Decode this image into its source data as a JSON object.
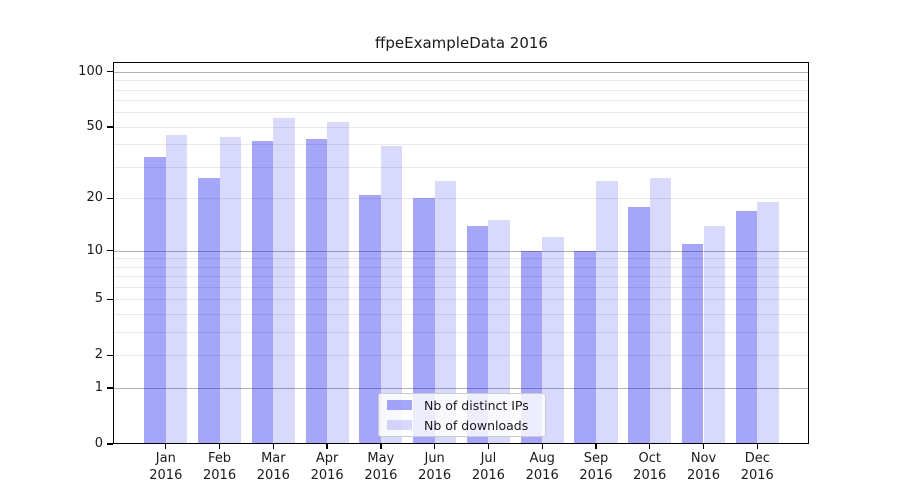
{
  "chart_data": {
    "type": "bar",
    "title": "ffpeExampleData 2016",
    "categories": [
      "Jan",
      "Feb",
      "Mar",
      "Apr",
      "May",
      "Jun",
      "Jul",
      "Aug",
      "Sep",
      "Oct",
      "Nov",
      "Dec"
    ],
    "year_label": "2016",
    "series": [
      {
        "name": "Nb of distinct IPs",
        "color": "#0000eb",
        "alpha": 0.35,
        "values": [
          34,
          26,
          42,
          43,
          21,
          20,
          14,
          10,
          10,
          18,
          11,
          17
        ]
      },
      {
        "name": "Nb of downloads",
        "color": "#0000eb",
        "alpha": 0.15,
        "values": [
          45,
          44,
          56,
          53,
          39,
          25,
          15,
          12,
          25,
          26,
          14,
          19
        ]
      }
    ],
    "yscale": "log1p",
    "ylim": [
      0,
      113
    ],
    "yticks": [
      100,
      50,
      20,
      10,
      5,
      2,
      1,
      0
    ],
    "grid": {
      "major_lines": [
        1,
        10,
        100
      ],
      "minor_lines": [
        2,
        3,
        4,
        5,
        6,
        7,
        8,
        9,
        20,
        30,
        40,
        50,
        60,
        70,
        80,
        90
      ],
      "major_color": "#b3b3b3",
      "minor_color": "#e9e9e9"
    },
    "legend_position": "lower center",
    "background_color": "#ffffff",
    "axis_color": "#000000",
    "text_color": "#1a1a1a"
  }
}
